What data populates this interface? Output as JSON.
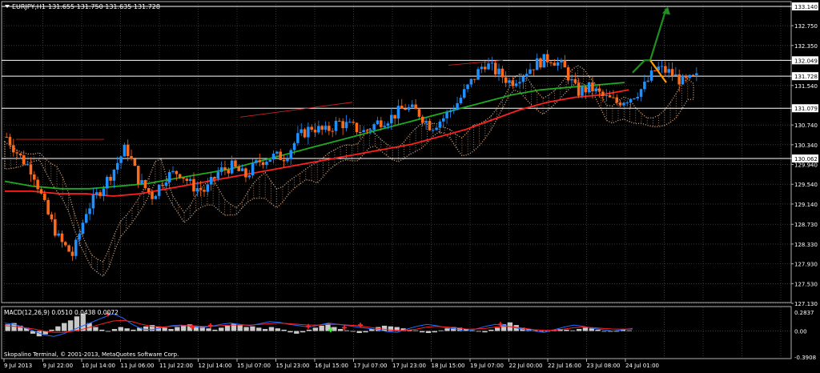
{
  "window": {
    "symbol_title": "EURJPY,H1",
    "ohlc": "131.655 131.750 131.635 131.728"
  },
  "footer": {
    "copyright": "Skopalino Terminal, © 2001-2013, MetaQuotes Software Corp."
  },
  "colors": {
    "background": "#000000",
    "grid": "#5a5a5a",
    "bull_candle": "#1e90ff",
    "bear_candle": "#ff6a1a",
    "sma_fast": "#ff2020",
    "sma_slow": "#1faa1f",
    "ichimoku_cloud": "#e8b48a",
    "arrow_up": "#1f8f1f",
    "arrow_down": "#ff9900",
    "hline": "#ffffff",
    "trendline": "#cc2222",
    "macd_line": "#1e6bff",
    "macd_signal": "#ff2020",
    "macd_hist": "#c8c8c8"
  },
  "chart_data": [
    {
      "type": "candlestick",
      "symbol": "EURJPY",
      "timeframe": "H1",
      "y_axis_ticks": [
        "133.140",
        "132.750",
        "132.350",
        "132.049",
        "131.728",
        "131.540",
        "131.079",
        "130.740",
        "130.340",
        "130.062",
        "129.940",
        "129.540",
        "129.140",
        "128.730",
        "128.330",
        "127.930",
        "127.530",
        "127.130"
      ],
      "ylim": [
        127.13,
        133.14
      ],
      "x_axis_ticks": [
        "9 Jul 2013",
        "9 Jul 22:00",
        "10 Jul 14:00",
        "11 Jul 06:00",
        "11 Jul 22:00",
        "12 Jul 14:00",
        "15 Jul 07:00",
        "15 Jul 23:00",
        "16 Jul 15:00",
        "17 Jul 07:00",
        "17 Jul 23:00",
        "18 Jul 15:00",
        "19 Jul 07:00",
        "22 Jul 00:00",
        "22 Jul 16:00",
        "23 Jul 08:00",
        "24 Jul 01:00"
      ],
      "horizontal_levels": [
        133.14,
        132.049,
        131.728,
        131.079,
        130.062
      ],
      "current_price": 131.728,
      "price_path": [
        130.5,
        130.1,
        129.8,
        129.0,
        128.4,
        128.1,
        129.0,
        129.4,
        129.8,
        130.3,
        129.6,
        129.3,
        129.7,
        129.8,
        129.5,
        129.4,
        129.8,
        129.9,
        129.7,
        130.0,
        130.1,
        130.1,
        130.5,
        130.7,
        130.6,
        130.8,
        130.7,
        130.6,
        130.8,
        130.9,
        131.1,
        131.0,
        130.7,
        130.9,
        131.2,
        131.6,
        132.0,
        131.8,
        131.6,
        131.8,
        132.0,
        132.1,
        131.9,
        131.4,
        131.5,
        131.3,
        131.2,
        131.3,
        131.5,
        131.9,
        131.8,
        131.6,
        131.7
      ],
      "sma_fast": [
        129.4,
        129.4,
        129.35,
        129.35,
        129.3,
        129.35,
        129.45,
        129.55,
        129.65,
        129.75,
        129.85,
        129.95,
        130.05,
        130.15,
        130.25,
        130.35,
        130.5,
        130.65,
        130.85,
        131.05,
        131.2,
        131.3,
        131.35,
        131.45
      ],
      "sma_slow": [
        129.6,
        129.5,
        129.45,
        129.45,
        129.5,
        129.55,
        129.65,
        129.75,
        129.85,
        130.0,
        130.15,
        130.3,
        130.45,
        130.6,
        130.75,
        130.9,
        131.05,
        131.2,
        131.35,
        131.45,
        131.5,
        131.55,
        131.6
      ],
      "projection": {
        "up_path": [
          [
            131.8,
            132.05
          ],
          [
            132.05,
            132.35
          ],
          [
            132.35,
            133.1
          ]
        ],
        "down_path": [
          [
            132.05,
            131.6
          ]
        ]
      }
    },
    {
      "type": "bar",
      "indicator": "MACD",
      "label": "MACD(12,26,9) 0.0510 0.0438 0.0072",
      "y_axis_ticks": [
        "0.2837",
        "0.00",
        "-0.3908"
      ],
      "ylim": [
        -0.3908,
        0.2837
      ],
      "histogram": [
        0.1,
        0.12,
        0.08,
        0.05,
        -0.04,
        -0.08,
        -0.05,
        0.02,
        0.07,
        0.12,
        0.16,
        0.22,
        0.26,
        0.12,
        0.06,
        0.02,
        -0.01,
        0.03,
        0.06,
        0.04,
        0.02,
        0.05,
        0.07,
        0.09,
        0.07,
        0.05,
        0.03,
        0.06,
        0.09,
        0.1,
        0.08,
        0.07,
        0.04,
        0.02,
        0.05,
        0.08,
        0.11,
        0.09,
        0.06,
        0.07,
        0.05,
        0.03,
        0.06,
        0.04,
        0.02,
        -0.02,
        -0.04,
        -0.02,
        0.02,
        0.05,
        0.08,
        0.11,
        0.06,
        0.03,
        0.01,
        -0.01,
        -0.03,
        -0.02,
        0.03,
        0.06,
        0.08,
        0.07,
        0.06,
        0.04,
        0.02,
        0.01,
        -0.02,
        -0.03,
        -0.02,
        0.01,
        0.04,
        0.06,
        0.05,
        0.03,
        0.01,
        -0.01,
        -0.02,
        0.02,
        0.05,
        0.1,
        0.13,
        0.09,
        0.05,
        0.03,
        0.01,
        -0.01,
        0.0,
        0.02,
        0.03,
        0.02,
        0.01,
        0.03,
        0.05,
        0.04,
        0.02,
        0.0,
        -0.01,
        0.0,
        0.02,
        0.01
      ],
      "macd_line": [
        0.12,
        0.1,
        0.05,
        0.0,
        -0.06,
        -0.08,
        -0.04,
        0.02,
        0.08,
        0.14,
        0.2,
        0.26,
        0.2,
        0.1,
        0.03,
        0.02,
        0.05,
        0.08,
        0.09,
        0.07,
        0.05,
        0.07,
        0.1,
        0.12,
        0.1,
        0.08,
        0.11,
        0.14,
        0.13,
        0.1,
        0.08,
        0.06,
        0.09,
        0.12,
        0.1,
        0.08,
        0.06,
        0.04,
        0.02,
        -0.01,
        -0.02,
        0.03,
        0.07,
        0.1,
        0.08,
        0.05,
        0.03,
        0.0,
        0.03,
        0.07,
        0.1,
        0.08,
        0.05,
        0.02,
        0.0,
        -0.02,
        0.02,
        0.06,
        0.09,
        0.07,
        0.04,
        0.02,
        0.0,
        0.02,
        0.04
      ],
      "signal_line": [
        0.08,
        0.07,
        0.05,
        0.03,
        0.0,
        -0.02,
        -0.02,
        0.0,
        0.03,
        0.07,
        0.11,
        0.15,
        0.16,
        0.14,
        0.1,
        0.07,
        0.06,
        0.07,
        0.08,
        0.08,
        0.07,
        0.07,
        0.08,
        0.09,
        0.09,
        0.09,
        0.1,
        0.11,
        0.12,
        0.11,
        0.1,
        0.09,
        0.09,
        0.1,
        0.1,
        0.09,
        0.08,
        0.06,
        0.04,
        0.02,
        0.01,
        0.01,
        0.03,
        0.06,
        0.07,
        0.06,
        0.05,
        0.03,
        0.03,
        0.04,
        0.06,
        0.07,
        0.06,
        0.04,
        0.02,
        0.01,
        0.01,
        0.03,
        0.05,
        0.06,
        0.05,
        0.04,
        0.03,
        0.03,
        0.03
      ]
    }
  ]
}
